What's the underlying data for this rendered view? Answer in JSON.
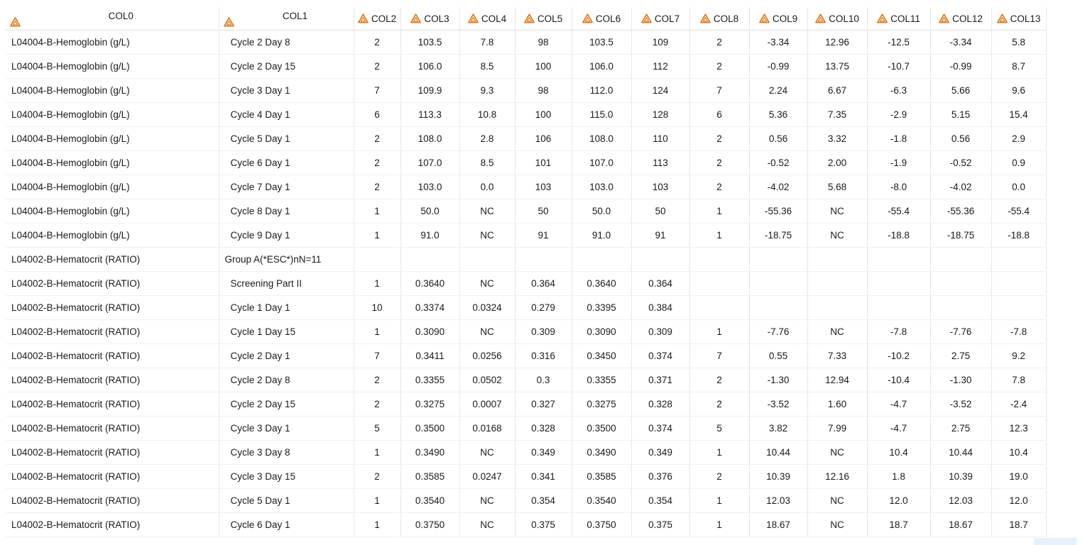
{
  "table": {
    "columns": [
      {
        "label": "COL0",
        "icon": "dataset-triangle-icon"
      },
      {
        "label": "COL1",
        "icon": "dataset-triangle-icon"
      },
      {
        "label": "COL2",
        "icon": "dataset-triangle-icon"
      },
      {
        "label": "COL3",
        "icon": "dataset-triangle-icon"
      },
      {
        "label": "COL4",
        "icon": "dataset-triangle-icon"
      },
      {
        "label": "COL5",
        "icon": "dataset-triangle-icon"
      },
      {
        "label": "COL6",
        "icon": "dataset-triangle-icon"
      },
      {
        "label": "COL7",
        "icon": "dataset-triangle-icon"
      },
      {
        "label": "COL8",
        "icon": "dataset-triangle-icon"
      },
      {
        "label": "COL9",
        "icon": "dataset-triangle-icon"
      },
      {
        "label": "COL10",
        "icon": "dataset-triangle-icon"
      },
      {
        "label": "COL11",
        "icon": "dataset-triangle-icon"
      },
      {
        "label": "COL12",
        "icon": "dataset-triangle-icon"
      },
      {
        "label": "COL13",
        "icon": "dataset-triangle-icon"
      }
    ],
    "icon_color": "#d97a1e",
    "rows": [
      [
        "L04004-B-Hemoglobin (g/L)",
        "Cycle 2 Day 8",
        "2",
        "103.5",
        "7.8",
        "98",
        "103.5",
        "109",
        "2",
        "-3.34",
        "12.96",
        "-12.5",
        "-3.34",
        "5.8"
      ],
      [
        "L04004-B-Hemoglobin (g/L)",
        "Cycle 2 Day 15",
        "2",
        "106.0",
        "8.5",
        "100",
        "106.0",
        "112",
        "2",
        "-0.99",
        "13.75",
        "-10.7",
        "-0.99",
        "8.7"
      ],
      [
        "L04004-B-Hemoglobin (g/L)",
        "Cycle 3 Day 1",
        "7",
        "109.9",
        "9.3",
        "98",
        "112.0",
        "124",
        "7",
        "2.24",
        "6.67",
        "-6.3",
        "5.66",
        "9.6"
      ],
      [
        "L04004-B-Hemoglobin (g/L)",
        "Cycle 4 Day 1",
        "6",
        "113.3",
        "10.8",
        "100",
        "115.0",
        "128",
        "6",
        "5.36",
        "7.35",
        "-2.9",
        "5.15",
        "15.4"
      ],
      [
        "L04004-B-Hemoglobin (g/L)",
        "Cycle 5 Day 1",
        "2",
        "108.0",
        "2.8",
        "106",
        "108.0",
        "110",
        "2",
        "0.56",
        "3.32",
        "-1.8",
        "0.56",
        "2.9"
      ],
      [
        "L04004-B-Hemoglobin (g/L)",
        "Cycle 6 Day 1",
        "2",
        "107.0",
        "8.5",
        "101",
        "107.0",
        "113",
        "2",
        "-0.52",
        "2.00",
        "-1.9",
        "-0.52",
        "0.9"
      ],
      [
        "L04004-B-Hemoglobin (g/L)",
        "Cycle 7 Day 1",
        "2",
        "103.0",
        "0.0",
        "103",
        "103.0",
        "103",
        "2",
        "-4.02",
        "5.68",
        "-8.0",
        "-4.02",
        "0.0"
      ],
      [
        "L04004-B-Hemoglobin (g/L)",
        "Cycle 8 Day 1",
        "1",
        "50.0",
        "NC",
        "50",
        "50.0",
        "50",
        "1",
        "-55.36",
        "NC",
        "-55.4",
        "-55.36",
        "-55.4"
      ],
      [
        "L04004-B-Hemoglobin (g/L)",
        "Cycle 9 Day 1",
        "1",
        "91.0",
        "NC",
        "91",
        "91.0",
        "91",
        "1",
        "-18.75",
        "NC",
        "-18.8",
        "-18.75",
        "-18.8"
      ],
      [
        "L04002-B-Hematocrit (RATIO)",
        "Group A(*ESC*)nN=11",
        "",
        "",
        "",
        "",
        "",
        "",
        "",
        "",
        "",
        "",
        "",
        ""
      ],
      [
        "L04002-B-Hematocrit (RATIO)",
        "Screening Part II",
        "1",
        "0.3640",
        "NC",
        "0.364",
        "0.3640",
        "0.364",
        "",
        "",
        "",
        "",
        "",
        ""
      ],
      [
        "L04002-B-Hematocrit (RATIO)",
        "Cycle 1 Day 1",
        "10",
        "0.3374",
        "0.0324",
        "0.279",
        "0.3395",
        "0.384",
        "",
        "",
        "",
        "",
        "",
        ""
      ],
      [
        "L04002-B-Hematocrit (RATIO)",
        "Cycle 1 Day 15",
        "1",
        "0.3090",
        "NC",
        "0.309",
        "0.3090",
        "0.309",
        "1",
        "-7.76",
        "NC",
        "-7.8",
        "-7.76",
        "-7.8"
      ],
      [
        "L04002-B-Hematocrit (RATIO)",
        "Cycle 2 Day 1",
        "7",
        "0.3411",
        "0.0256",
        "0.316",
        "0.3450",
        "0.374",
        "7",
        "0.55",
        "7.33",
        "-10.2",
        "2.75",
        "9.2"
      ],
      [
        "L04002-B-Hematocrit (RATIO)",
        "Cycle 2 Day 8",
        "2",
        "0.3355",
        "0.0502",
        "0.3",
        "0.3355",
        "0.371",
        "2",
        "-1.30",
        "12.94",
        "-10.4",
        "-1.30",
        "7.8"
      ],
      [
        "L04002-B-Hematocrit (RATIO)",
        "Cycle 2 Day 15",
        "2",
        "0.3275",
        "0.0007",
        "0.327",
        "0.3275",
        "0.328",
        "2",
        "-3.52",
        "1.60",
        "-4.7",
        "-3.52",
        "-2.4"
      ],
      [
        "L04002-B-Hematocrit (RATIO)",
        "Cycle 3 Day 1",
        "5",
        "0.3500",
        "0.0168",
        "0.328",
        "0.3500",
        "0.374",
        "5",
        "3.82",
        "7.99",
        "-4.7",
        "2.75",
        "12.3"
      ],
      [
        "L04002-B-Hematocrit (RATIO)",
        "Cycle 3 Day 8",
        "1",
        "0.3490",
        "NC",
        "0.349",
        "0.3490",
        "0.349",
        "1",
        "10.44",
        "NC",
        "10.4",
        "10.44",
        "10.4"
      ],
      [
        "L04002-B-Hematocrit (RATIO)",
        "Cycle 3 Day 15",
        "2",
        "0.3585",
        "0.0247",
        "0.341",
        "0.3585",
        "0.376",
        "2",
        "10.39",
        "12.16",
        "1.8",
        "10.39",
        "19.0"
      ],
      [
        "L04002-B-Hematocrit (RATIO)",
        "Cycle 5 Day 1",
        "1",
        "0.3540",
        "NC",
        "0.354",
        "0.3540",
        "0.354",
        "1",
        "12.03",
        "NC",
        "12.0",
        "12.03",
        "12.0"
      ],
      [
        "L04002-B-Hematocrit (RATIO)",
        "Cycle 6 Day 1",
        "1",
        "0.3750",
        "NC",
        "0.375",
        "0.3750",
        "0.375",
        "1",
        "18.67",
        "NC",
        "18.7",
        "18.67",
        "18.7"
      ]
    ]
  }
}
